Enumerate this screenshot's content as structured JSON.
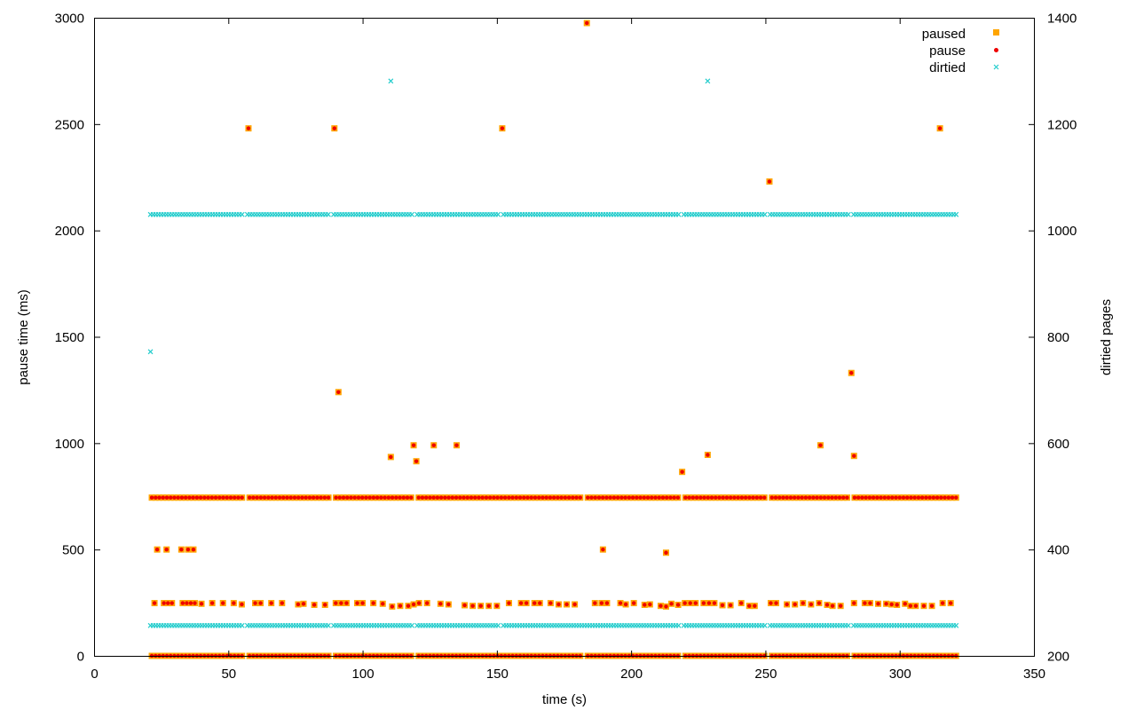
{
  "chart_data": {
    "type": "scatter",
    "title": "",
    "xlabel": "time (s)",
    "ylabel": "pause time (ms)",
    "y2label": "dirtied pages",
    "xlim": [
      0,
      350
    ],
    "ylim": [
      0,
      3000
    ],
    "y2lim": [
      200,
      1400
    ],
    "xticks": [
      "0",
      "50",
      "100",
      "150",
      "200",
      "250",
      "300",
      "350"
    ],
    "yticks": [
      "0",
      "500",
      "1000",
      "1500",
      "2000",
      "2500",
      "3000"
    ],
    "y2ticks": [
      "200",
      "400",
      "600",
      "800",
      "1000",
      "1200",
      "1400"
    ],
    "grid": false,
    "legend_position": "top-right",
    "colors": {
      "paused": "#ffa500",
      "pause": "#ee0000",
      "dirtied": "#22cccc",
      "axis": "#000000"
    },
    "series": [
      {
        "name": "paused",
        "axis": "left",
        "marker": "filled-square",
        "color": "#ffa500",
        "x_range": [
          21.5,
          321
        ],
        "bands": [
          {
            "y": 744,
            "points": 215,
            "gaps": [
              56.5,
              88.5,
              119.5,
              151,
              182,
              219,
              251,
              282
            ]
          },
          {
            "y": 0,
            "points": 215,
            "gaps": [
              56.5,
              88.5,
              119.5,
              151,
              182,
              219,
              251,
              282
            ]
          }
        ],
        "points": [
          [
            57.5,
            2480
          ],
          [
            89.5,
            2480
          ],
          [
            152,
            2480
          ],
          [
            183.5,
            2975
          ],
          [
            251.5,
            2230
          ],
          [
            315,
            2480
          ],
          [
            91,
            1240
          ],
          [
            282,
            1330
          ],
          [
            110.5,
            935
          ],
          [
            119,
            990
          ],
          [
            120,
            915
          ],
          [
            126.5,
            990
          ],
          [
            135,
            990
          ],
          [
            219,
            865
          ],
          [
            228.5,
            945
          ],
          [
            270.5,
            990
          ],
          [
            283,
            940
          ],
          [
            23.5,
            500
          ],
          [
            27,
            500
          ],
          [
            32.5,
            500
          ],
          [
            35,
            500
          ],
          [
            37,
            500
          ],
          [
            189.5,
            500
          ],
          [
            213,
            485
          ],
          [
            22.5,
            248
          ],
          [
            26,
            248
          ],
          [
            27.5,
            248
          ],
          [
            29,
            248
          ],
          [
            33,
            248
          ],
          [
            34.5,
            248
          ],
          [
            36,
            248
          ],
          [
            37.5,
            248
          ],
          [
            40,
            245
          ],
          [
            44,
            248
          ],
          [
            48,
            248
          ],
          [
            52,
            248
          ],
          [
            55,
            242
          ],
          [
            60,
            248
          ],
          [
            62,
            248
          ],
          [
            66,
            248
          ],
          [
            70,
            248
          ],
          [
            76,
            242
          ],
          [
            78,
            245
          ],
          [
            82,
            240
          ],
          [
            86,
            240
          ],
          [
            90,
            248
          ],
          [
            92,
            248
          ],
          [
            94,
            248
          ],
          [
            98,
            248
          ],
          [
            100,
            248
          ],
          [
            104,
            248
          ],
          [
            107.5,
            245
          ],
          [
            111,
            232
          ],
          [
            114,
            235
          ],
          [
            117,
            235
          ],
          [
            119,
            242
          ],
          [
            121,
            248
          ],
          [
            124,
            248
          ],
          [
            129,
            245
          ],
          [
            132,
            242
          ],
          [
            138,
            238
          ],
          [
            141,
            235
          ],
          [
            144,
            235
          ],
          [
            147,
            235
          ],
          [
            150,
            235
          ],
          [
            154.5,
            248
          ],
          [
            159,
            248
          ],
          [
            161,
            248
          ],
          [
            164,
            248
          ],
          [
            166,
            248
          ],
          [
            170,
            248
          ],
          [
            173,
            242
          ],
          [
            176,
            242
          ],
          [
            179,
            242
          ],
          [
            186.5,
            248
          ],
          [
            189,
            248
          ],
          [
            191,
            248
          ],
          [
            196,
            248
          ],
          [
            198,
            242
          ],
          [
            201,
            248
          ],
          [
            205,
            240
          ],
          [
            207,
            242
          ],
          [
            211,
            235
          ],
          [
            213,
            232
          ],
          [
            215,
            245
          ],
          [
            217.5,
            240
          ],
          [
            220,
            248
          ],
          [
            222,
            248
          ],
          [
            224,
            248
          ],
          [
            227,
            248
          ],
          [
            229,
            248
          ],
          [
            231,
            248
          ],
          [
            234,
            238
          ],
          [
            237,
            238
          ],
          [
            241,
            248
          ],
          [
            244,
            235
          ],
          [
            246,
            235
          ],
          [
            252,
            248
          ],
          [
            254,
            248
          ],
          [
            258,
            242
          ],
          [
            261,
            242
          ],
          [
            264,
            248
          ],
          [
            267,
            242
          ],
          [
            270,
            248
          ],
          [
            273,
            240
          ],
          [
            275,
            235
          ],
          [
            278,
            235
          ],
          [
            283,
            248
          ],
          [
            287,
            248
          ],
          [
            289,
            248
          ],
          [
            292,
            245
          ],
          [
            295,
            245
          ],
          [
            297,
            242
          ],
          [
            299,
            240
          ],
          [
            302,
            245
          ],
          [
            304,
            235
          ],
          [
            306,
            235
          ],
          [
            309,
            235
          ],
          [
            312,
            235
          ],
          [
            316,
            248
          ],
          [
            319,
            248
          ]
        ]
      },
      {
        "name": "pause",
        "axis": "left",
        "marker": "dot",
        "color": "#ee0000",
        "same_as": "paused"
      },
      {
        "name": "dirtied",
        "axis": "right",
        "marker": "cross",
        "color": "#22cccc",
        "x_range": [
          21,
          321
        ],
        "bands": [
          {
            "y": 1030,
            "points": 300,
            "gaps": [
              56.5,
              88.5,
              119.5,
              151,
              182,
              219,
              251,
              282
            ]
          },
          {
            "y": 257,
            "points": 300,
            "gaps": [
              56.5,
              88.5,
              119.5,
              151,
              182,
              219,
              251,
              282
            ]
          }
        ],
        "points": [
          [
            21,
            772
          ],
          [
            110.5,
            1281
          ],
          [
            228.5,
            1281
          ]
        ]
      }
    ]
  }
}
